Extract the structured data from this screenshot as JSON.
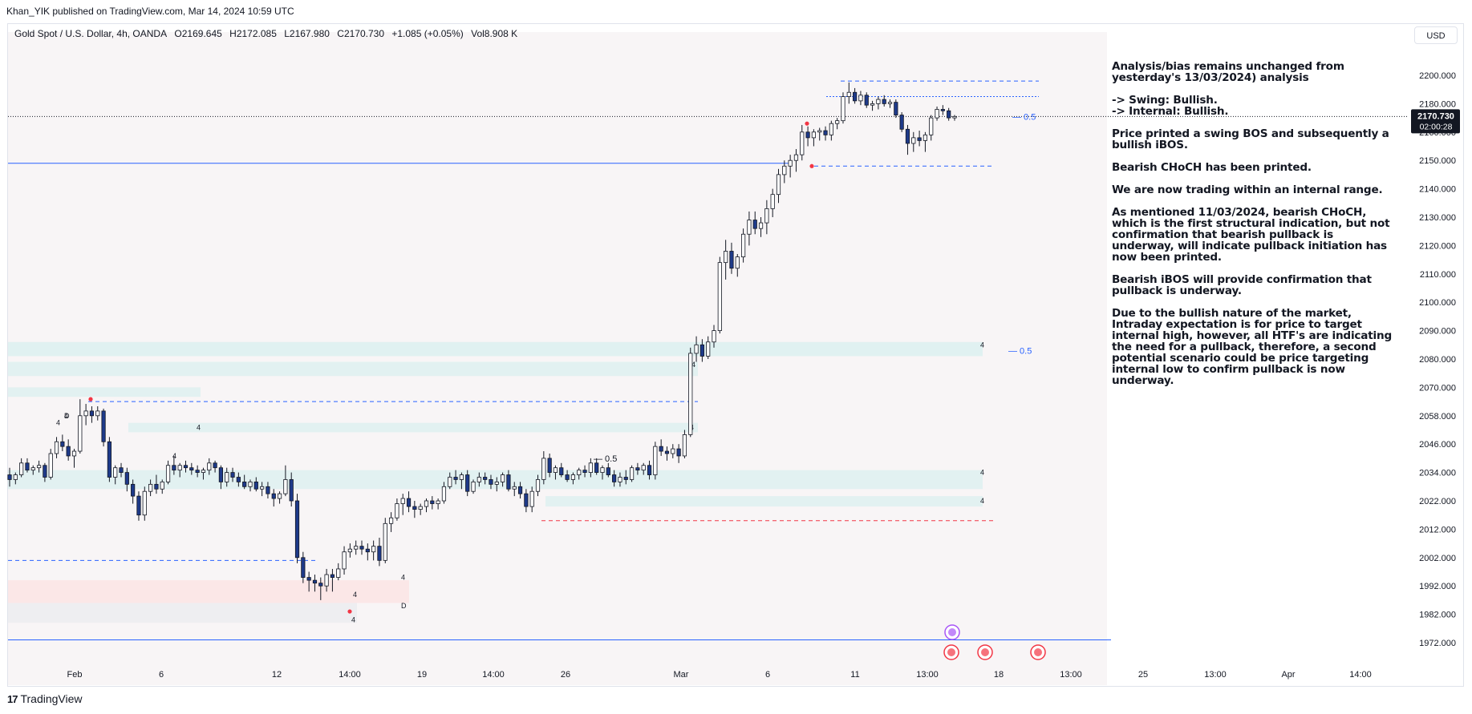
{
  "header": {
    "published": "Khan_YIK published on TradingView.com, Mar 14, 2024 10:59 UTC"
  },
  "legend": {
    "symbol": "Gold Spot / U.S. Dollar, 4h, OANDA",
    "open": "O2169.645",
    "high": "H2172.085",
    "low": "L2167.980",
    "close": "C2170.730",
    "change": "+1.085 (+0.05%)",
    "volume": "Vol8.908 K"
  },
  "currency_button": "USD",
  "price_tag": {
    "price": "2170.730",
    "countdown": "02:00:28"
  },
  "footer": {
    "brand": "TradingView"
  },
  "analysis": [
    "Analysis/bias remains unchanged from yesterday's 13/03/2024) analysis",
    "-> Swing:  Bullish.\n-> Internal:  Bullish.",
    "Price printed a swing BOS and subsequently a bullish iBOS.",
    "Bearish CHoCH has been printed.",
    "We are now trading within an internal range.",
    "As mentioned 11/03/2024, bearish CHoCH, which is the first structural indication, but not confirmation that bearish pullback is underway, will indicate pullback initiation has now been printed.",
    "Bearish iBOS will provide confirmation that pullback is underway.",
    "Due to the bullish nature of the market, Intraday expectation is for price to target internal high, however, all HTF's  are indicating the need for a pullback, therefore, a second potential scenario could be price targeting internal low to confirm pullback is now underway."
  ],
  "chart_data": {
    "type": "candlestick",
    "y_axis_ticks": [
      "2200.000",
      "2180.000",
      "2160.000",
      "2150.000",
      "2140.000",
      "2130.000",
      "2120.000",
      "2110.000",
      "2100.000",
      "2090.000",
      "2080.000",
      "2070.000",
      "2058.000",
      "2046.000",
      "2034.000",
      "2022.000",
      "2012.000",
      "2002.000",
      "1992.000",
      "1982.000",
      "1972.000"
    ],
    "x_axis_ticks": [
      "Feb",
      "6",
      "12",
      "14:00",
      "19",
      "14:00",
      "26",
      "Mar",
      "6",
      "11",
      "13:00",
      "18",
      "13:00",
      "25",
      "13:00",
      "Apr",
      "14:00"
    ],
    "ylim": [
      1966,
      2210
    ],
    "candles": [
      [
        2033,
        2036,
        2028,
        2031
      ],
      [
        2031,
        2034,
        2029,
        2033
      ],
      [
        2033,
        2040,
        2032,
        2038
      ],
      [
        2038,
        2040,
        2034,
        2035
      ],
      [
        2035,
        2037,
        2033,
        2036
      ],
      [
        2036,
        2039,
        2034,
        2037
      ],
      [
        2037,
        2038,
        2030,
        2032
      ],
      [
        2032,
        2044,
        2031,
        2042
      ],
      [
        2042,
        2049,
        2040,
        2047
      ],
      [
        2047,
        2050,
        2043,
        2045
      ],
      [
        2045,
        2048,
        2039,
        2041
      ],
      [
        2041,
        2044,
        2036,
        2043
      ],
      [
        2043,
        2065,
        2042,
        2058
      ],
      [
        2058,
        2063,
        2054,
        2060
      ],
      [
        2060,
        2062,
        2055,
        2058
      ],
      [
        2058,
        2062,
        2056,
        2060
      ],
      [
        2060,
        2061,
        2045,
        2047
      ],
      [
        2047,
        2049,
        2030,
        2032
      ],
      [
        2032,
        2037,
        2029,
        2036
      ],
      [
        2036,
        2038,
        2032,
        2034
      ],
      [
        2034,
        2036,
        2026,
        2029
      ],
      [
        2029,
        2031,
        2021,
        2024
      ],
      [
        2024,
        2026,
        2015,
        2017
      ],
      [
        2017,
        2028,
        2015,
        2026
      ],
      [
        2026,
        2031,
        2024,
        2029
      ],
      [
        2029,
        2033,
        2025,
        2027
      ],
      [
        2027,
        2031,
        2025,
        2030
      ],
      [
        2030,
        2039,
        2029,
        2037
      ],
      [
        2037,
        2041,
        2033,
        2035
      ],
      [
        2035,
        2038,
        2032,
        2037
      ],
      [
        2037,
        2039,
        2034,
        2036
      ],
      [
        2036,
        2038,
        2033,
        2035
      ],
      [
        2035,
        2037,
        2032,
        2034
      ],
      [
        2034,
        2036,
        2031,
        2035
      ],
      [
        2035,
        2040,
        2033,
        2038
      ],
      [
        2038,
        2039,
        2034,
        2036
      ],
      [
        2036,
        2037,
        2027,
        2030
      ],
      [
        2030,
        2036,
        2028,
        2034
      ],
      [
        2034,
        2036,
        2030,
        2032
      ],
      [
        2032,
        2034,
        2028,
        2030
      ],
      [
        2030,
        2033,
        2027,
        2028
      ],
      [
        2028,
        2031,
        2026,
        2030
      ],
      [
        2030,
        2032,
        2026,
        2027
      ],
      [
        2027,
        2030,
        2024,
        2028
      ],
      [
        2028,
        2030,
        2023,
        2025
      ],
      [
        2025,
        2027,
        2020,
        2023
      ],
      [
        2023,
        2026,
        2021,
        2025
      ],
      [
        2025,
        2037,
        2024,
        2031
      ],
      [
        2031,
        2034,
        2020,
        2022
      ],
      [
        2022,
        2025,
        2000,
        2002
      ],
      [
        2002,
        2004,
        1993,
        1995
      ],
      [
        1995,
        1997,
        1990,
        1994
      ],
      [
        1994,
        1996,
        1990,
        1993
      ],
      [
        1993,
        1995,
        1987,
        1992
      ],
      [
        1992,
        1998,
        1990,
        1996
      ],
      [
        1996,
        1998,
        1990,
        1995
      ],
      [
        1995,
        2000,
        1994,
        1998
      ],
      [
        1998,
        2006,
        1996,
        2004
      ],
      [
        2004,
        2007,
        2002,
        2005
      ],
      [
        2005,
        2008,
        2003,
        2006
      ],
      [
        2006,
        2008,
        2003,
        2005
      ],
      [
        2005,
        2007,
        2001,
        2004
      ],
      [
        2004,
        2008,
        2001,
        2006
      ],
      [
        2006,
        2009,
        1999,
        2001
      ],
      [
        2001,
        2016,
        2000,
        2014
      ],
      [
        2014,
        2018,
        2011,
        2016
      ],
      [
        2016,
        2023,
        2015,
        2021
      ],
      [
        2021,
        2025,
        2017,
        2023
      ],
      [
        2023,
        2026,
        2018,
        2020
      ],
      [
        2020,
        2022,
        2016,
        2019
      ],
      [
        2019,
        2021,
        2017,
        2020
      ],
      [
        2020,
        2023,
        2018,
        2022
      ],
      [
        2022,
        2024,
        2019,
        2021
      ],
      [
        2021,
        2023,
        2019,
        2022
      ],
      [
        2022,
        2030,
        2021,
        2028
      ],
      [
        2028,
        2034,
        2027,
        2032
      ],
      [
        2032,
        2035,
        2029,
        2031
      ],
      [
        2031,
        2034,
        2027,
        2033
      ],
      [
        2033,
        2035,
        2024,
        2026
      ],
      [
        2026,
        2031,
        2025,
        2030
      ],
      [
        2030,
        2034,
        2028,
        2032
      ],
      [
        2032,
        2034,
        2029,
        2031
      ],
      [
        2031,
        2033,
        2027,
        2029
      ],
      [
        2029,
        2032,
        2026,
        2030
      ],
      [
        2030,
        2034,
        2028,
        2033
      ],
      [
        2033,
        2035,
        2026,
        2027
      ],
      [
        2027,
        2030,
        2024,
        2028
      ],
      [
        2028,
        2030,
        2023,
        2025
      ],
      [
        2025,
        2027,
        2018,
        2020
      ],
      [
        2020,
        2028,
        2018,
        2026
      ],
      [
        2026,
        2033,
        2024,
        2031
      ],
      [
        2031,
        2043,
        2029,
        2040
      ],
      [
        2040,
        2042,
        2032,
        2034
      ],
      [
        2034,
        2037,
        2031,
        2036
      ],
      [
        2036,
        2038,
        2032,
        2033
      ],
      [
        2033,
        2035,
        2030,
        2031
      ],
      [
        2031,
        2034,
        2029,
        2033
      ],
      [
        2033,
        2036,
        2031,
        2035
      ],
      [
        2035,
        2037,
        2032,
        2034
      ],
      [
        2034,
        2040,
        2032,
        2038
      ],
      [
        2038,
        2040,
        2033,
        2034
      ],
      [
        2034,
        2037,
        2031,
        2036
      ],
      [
        2036,
        2038,
        2032,
        2033
      ],
      [
        2033,
        2035,
        2028,
        2030
      ],
      [
        2030,
        2034,
        2028,
        2032
      ],
      [
        2032,
        2035,
        2029,
        2031
      ],
      [
        2031,
        2037,
        2030,
        2036
      ],
      [
        2036,
        2038,
        2033,
        2035
      ],
      [
        2035,
        2038,
        2033,
        2037
      ],
      [
        2037,
        2039,
        2031,
        2033
      ],
      [
        2033,
        2047,
        2031,
        2045
      ],
      [
        2045,
        2048,
        2041,
        2043
      ],
      [
        2043,
        2045,
        2039,
        2042
      ],
      [
        2042,
        2046,
        2040,
        2044
      ],
      [
        2044,
        2046,
        2038,
        2041
      ],
      [
        2041,
        2052,
        2040,
        2050
      ],
      [
        2050,
        2084,
        2049,
        2082
      ],
      [
        2082,
        2088,
        2079,
        2085
      ],
      [
        2085,
        2087,
        2079,
        2081
      ],
      [
        2081,
        2088,
        2080,
        2086
      ],
      [
        2086,
        2092,
        2084,
        2090
      ],
      [
        2090,
        2116,
        2089,
        2114
      ],
      [
        2114,
        2122,
        2108,
        2118
      ],
      [
        2118,
        2121,
        2110,
        2112
      ],
      [
        2112,
        2117,
        2109,
        2116
      ],
      [
        2116,
        2126,
        2114,
        2124
      ],
      [
        2124,
        2132,
        2120,
        2129
      ],
      [
        2129,
        2132,
        2124,
        2126
      ],
      [
        2126,
        2130,
        2123,
        2128
      ],
      [
        2128,
        2136,
        2124,
        2133
      ],
      [
        2133,
        2140,
        2130,
        2138
      ],
      [
        2138,
        2147,
        2135,
        2145
      ],
      [
        2145,
        2150,
        2142,
        2148
      ],
      [
        2148,
        2152,
        2144,
        2150
      ],
      [
        2150,
        2154,
        2146,
        2152
      ],
      [
        2152,
        2165,
        2150,
        2160
      ],
      [
        2160,
        2164,
        2155,
        2158
      ],
      [
        2158,
        2162,
        2155,
        2160
      ],
      [
        2160,
        2163,
        2157,
        2161
      ],
      [
        2161,
        2164,
        2157,
        2159
      ],
      [
        2159,
        2168,
        2157,
        2166
      ],
      [
        2166,
        2170,
        2162,
        2168
      ],
      [
        2168,
        2188,
        2166,
        2185
      ],
      [
        2185,
        2195,
        2180,
        2188
      ],
      [
        2188,
        2191,
        2180,
        2182
      ],
      [
        2182,
        2189,
        2179,
        2186
      ],
      [
        2186,
        2188,
        2177,
        2179
      ],
      [
        2179,
        2182,
        2175,
        2180
      ],
      [
        2180,
        2185,
        2176,
        2183
      ],
      [
        2183,
        2186,
        2178,
        2180
      ],
      [
        2180,
        2183,
        2177,
        2181
      ],
      [
        2181,
        2183,
        2170,
        2172
      ],
      [
        2172,
        2174,
        2160,
        2162
      ],
      [
        2162,
        2165,
        2152,
        2156
      ],
      [
        2156,
        2160,
        2153,
        2158
      ],
      [
        2158,
        2161,
        2155,
        2157
      ],
      [
        2157,
        2160,
        2153,
        2159
      ],
      [
        2159,
        2172,
        2157,
        2170
      ],
      [
        2170,
        2178,
        2168,
        2176
      ],
      [
        2176,
        2179,
        2172,
        2175
      ],
      [
        2175,
        2177,
        2168,
        2170
      ],
      [
        2170,
        2172,
        2168,
        2171
      ]
    ],
    "zones": [
      {
        "y": [
          2081,
          2086
        ],
        "color": "#e0f1f1"
      },
      {
        "y": [
          2074,
          2079
        ],
        "color": "#e2f1f1"
      },
      {
        "y": [
          2066,
          2070
        ],
        "color": "#e2f1f1"
      },
      {
        "y": [
          2051,
          2055
        ],
        "color": "#e2f1f1"
      },
      {
        "y": [
          2027,
          2035
        ],
        "color": "#e2f1f1"
      },
      {
        "y": [
          2020,
          2024
        ],
        "color": "#e2f1f1"
      },
      {
        "y": [
          1986,
          1994
        ],
        "color": "#fbe7e7"
      },
      {
        "y": [
          1979,
          1986
        ],
        "color": "#eeeef1"
      }
    ],
    "levels": [
      {
        "y": 2196,
        "style": "dashed",
        "color": "#2962ff"
      },
      {
        "y": 2185,
        "style": "dotted",
        "color": "#2962ff"
      },
      {
        "y": 2148,
        "style": "dashed",
        "color": "#2962ff"
      },
      {
        "y": 2149,
        "style": "solid",
        "color": "#2962ff"
      },
      {
        "y": 2064,
        "style": "dashed",
        "color": "#2962ff"
      },
      {
        "y": 2015,
        "style": "dashed",
        "color": "#f23645"
      },
      {
        "y": 2001,
        "style": "dashed",
        "color": "#2962ff"
      },
      {
        "y": 1973,
        "style": "solid",
        "color": "#2962ff"
      }
    ],
    "fib_labels": [
      {
        "text": "— 0.5",
        "y": 2171
      },
      {
        "text": "— 0.5",
        "y": 2083
      },
      {
        "text": "— 0.5",
        "y": 2040
      }
    ],
    "zone_labels": [
      "4",
      "4",
      "4",
      "4",
      "4",
      "D",
      "4",
      "4",
      "4",
      "4",
      "D",
      "4",
      "4",
      "4"
    ],
    "colors": {
      "up": "#ffffff",
      "down": "#1e3a8a",
      "wick": "#131722",
      "current_line": "#131722",
      "grid": "#f2f3f5"
    }
  }
}
